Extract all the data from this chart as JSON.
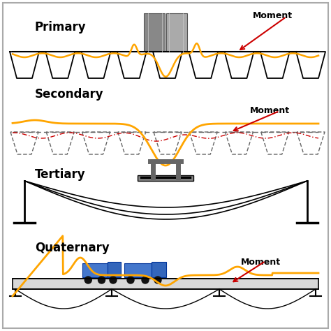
{
  "bg_color": "#ffffff",
  "border_color": "#aaaaaa",
  "primary_label": "Primary",
  "secondary_label": "Secondary",
  "tertiary_label": "Tertiary",
  "quaternary_label": "Quaternary",
  "moment_label": "Moment",
  "orange_color": "#FFA500",
  "red_color": "#CC0000",
  "black_color": "#000000",
  "blue_color": "#4477CC",
  "dkgray_color": "#666666",
  "ltgray_color": "#999999"
}
